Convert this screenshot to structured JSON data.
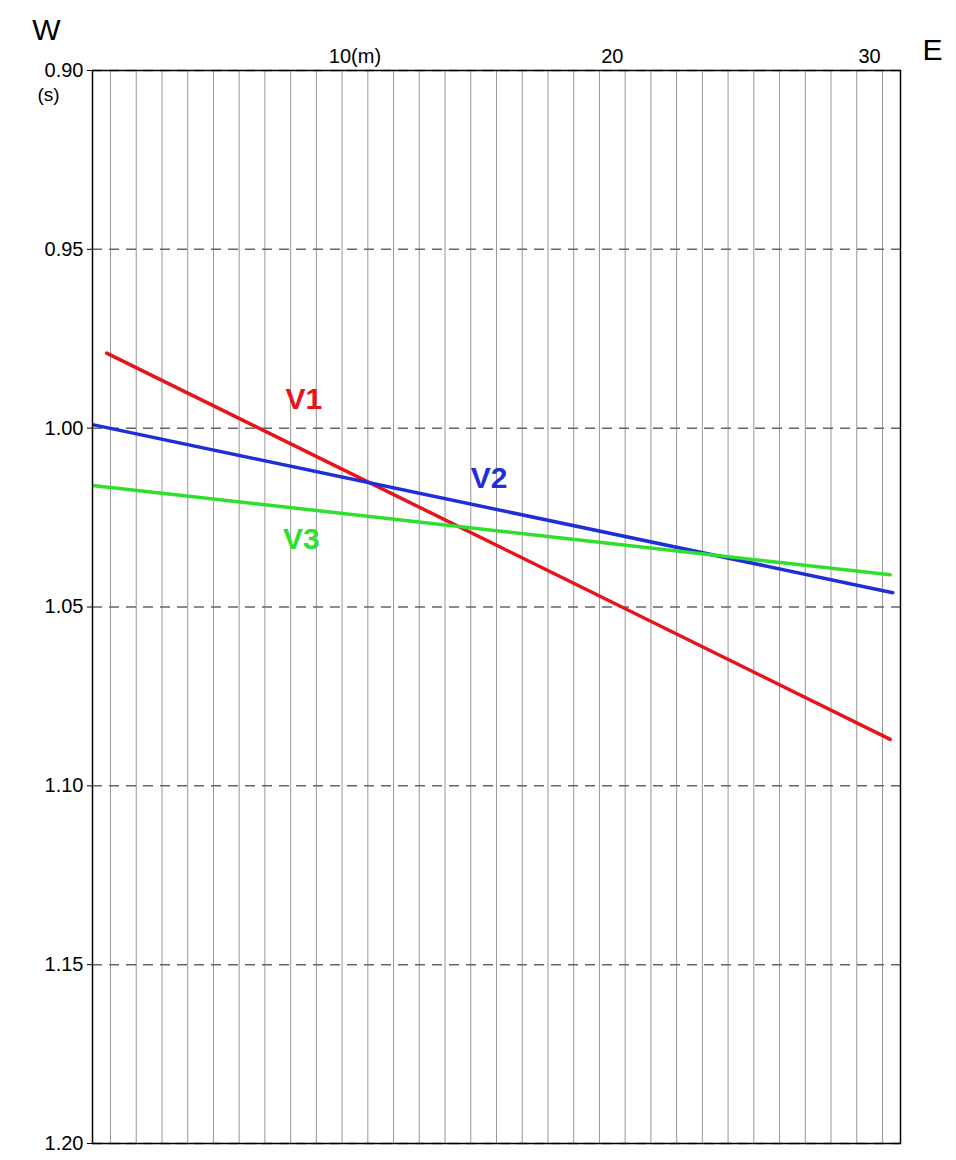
{
  "chart_data": {
    "type": "line",
    "direction_labels": [
      "W",
      "E"
    ],
    "y_label": "(s)",
    "xlim": [
      -0.2,
      31.2
    ],
    "xticks": [
      {
        "value": 10,
        "label": "10(m)"
      },
      20,
      30
    ],
    "ylim": [
      0.9,
      1.2
    ],
    "yticks": [
      {
        "value": 0.9,
        "label": "0.90"
      },
      0.95,
      {
        "value": 1.0,
        "label": "1.00"
      },
      1.05,
      {
        "value": 1.1,
        "label": "1.10"
      },
      1.15,
      {
        "value": 1.2,
        "label": "1.20"
      }
    ],
    "grid": true,
    "receivers": [
      0.5,
      1.5,
      2.5,
      3.5,
      4.5,
      5.5,
      6.5,
      7.5,
      8.5,
      9.5,
      10.5,
      11.5,
      12.5,
      13.5,
      14.5,
      15.5,
      16.5,
      17.5,
      18.5,
      19.5,
      20.5,
      21.5,
      22.5,
      23.5,
      24.5,
      25.5,
      26.5,
      27.5,
      28.5,
      29.5,
      30.5
    ],
    "series": [
      {
        "name": "V1",
        "color": "#e8141c",
        "x": [
          0.35,
          30.8
        ],
        "values": [
          0.979,
          1.087
        ],
        "label_at": [
          7.3,
          0.992
        ]
      },
      {
        "name": "V2",
        "color": "#1f2fd8",
        "x": [
          -0.2,
          30.9
        ],
        "values": [
          0.999,
          1.046
        ],
        "label_at": [
          14.5,
          1.014
        ]
      },
      {
        "name": "V3",
        "color": "#2ee02e",
        "x": [
          -0.2,
          30.8
        ],
        "values": [
          1.016,
          1.041
        ],
        "label_at": [
          7.2,
          1.031
        ]
      }
    ]
  }
}
